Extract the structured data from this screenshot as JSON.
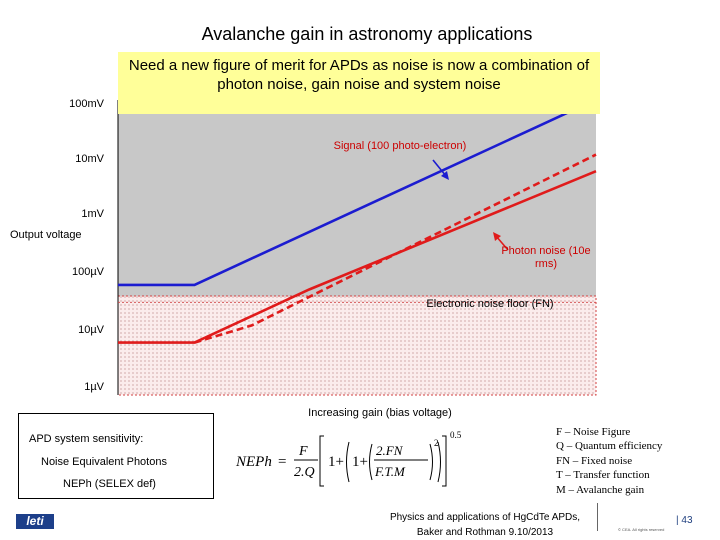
{
  "title": "Avalanche gain in astronomy applications",
  "callout": "Need a new figure of merit for APDs as noise is now a combination of photon noise, gain noise and system noise",
  "chart_data": {
    "type": "line",
    "ylabel": "Output voltage",
    "xlabel": "Increasing gain (bias voltage)",
    "y_scale": "log",
    "y_ticks": [
      "100mV",
      "10mV",
      "1mV",
      "100µV",
      "10µV",
      "1µV"
    ],
    "y_tick_values": [
      0.1,
      0.01,
      0.001,
      0.0001,
      1e-05,
      1e-06
    ],
    "x_range": [
      0,
      1
    ],
    "series": [
      {
        "label": "Signal (100 photo-electron)",
        "style": "solid",
        "color": "#1c1cd0",
        "x": [
          0,
          0.16,
          1
        ],
        "y": [
          6e-05,
          6e-05,
          0.12
        ]
      },
      {
        "label": "",
        "style": "solid",
        "color": "#e01b1b",
        "x": [
          0,
          0.16,
          0.4,
          1
        ],
        "y": [
          6e-06,
          6e-06,
          5e-05,
          0.006
        ]
      },
      {
        "label": "Photon noise (10e rms)",
        "style": "dashed",
        "color": "#e01b1b",
        "x": [
          0.16,
          0.28,
          1
        ],
        "y": [
          6e-06,
          1.2e-05,
          0.012
        ]
      }
    ],
    "noise_floor": {
      "label": "Electronic noise floor (FN)",
      "value": 3e-05
    }
  },
  "sensitivity": {
    "line1": "APD system sensitivity:",
    "line2": "Noise Equivalent Photons",
    "line3": "NEPh (SELEX def)"
  },
  "definitions": [
    "F – Noise Figure",
    "Q – Quantum efficiency",
    "FN – Fixed noise",
    "T – Transfer function",
    "M – Avalanche gain"
  ],
  "footer": {
    "line1": "Physics and applications of HgCdTe APDs,",
    "line2": "Baker and Rothman 9.10/2013",
    "page": "| 43",
    "copyright": "© CEA. All rights reserved",
    "logo": "leti"
  },
  "colors": {
    "signal": "#1c1cd0",
    "noise": "#e01b1b",
    "plot_bg": "#c8c8c8",
    "noise_fill": "#fbecec",
    "callout": "#ffff99"
  }
}
